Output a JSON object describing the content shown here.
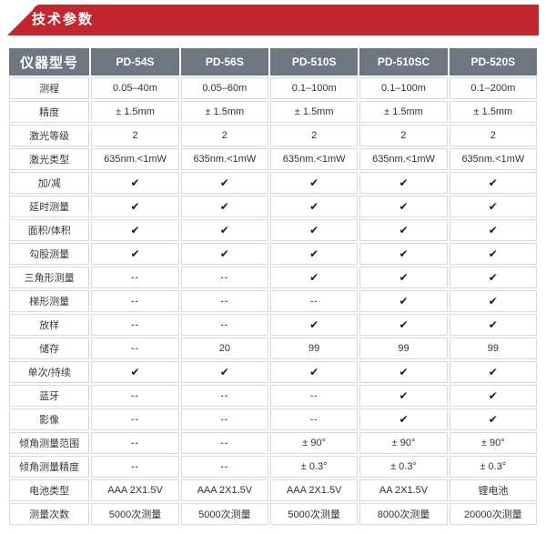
{
  "banner": {
    "title": "技术参数"
  },
  "colors": {
    "banner_red": "#c2272e",
    "header_gray": "#6e7781",
    "cell_border": "#d9d9d9",
    "check_black": "#1c1c1c",
    "dash_gray": "#5a5a5a"
  },
  "icons": {
    "check": "✔",
    "not_available": "--"
  },
  "table": {
    "header": [
      "仪器型号",
      "PD-54S",
      "PD-56S",
      "PD-510S",
      "PD-510SC",
      "PD-520S"
    ],
    "rows": [
      {
        "label": "测程",
        "cells": [
          "0.05–40m",
          "0.05–60m",
          "0.1–100m",
          "0.1–100m",
          "0.1–200m"
        ]
      },
      {
        "label": "精度",
        "cells": [
          "± 1.5mm",
          "± 1.5mm",
          "± 1.5mm",
          "± 1.5mm",
          "± 1.5mm"
        ]
      },
      {
        "label": "激光等级",
        "cells": [
          "2",
          "2",
          "2",
          "2",
          "2"
        ]
      },
      {
        "label": "激光类型",
        "cells": [
          "635nm.<1mW",
          "635nm.<1mW",
          "635nm.<1mW",
          "635nm.<1mW",
          "635nm.<1mW"
        ]
      },
      {
        "label": "加/减",
        "cells": [
          "✔",
          "✔",
          "✔",
          "✔",
          "✔"
        ]
      },
      {
        "label": "延时测量",
        "cells": [
          "✔",
          "✔",
          "✔",
          "✔",
          "✔"
        ]
      },
      {
        "label": "面积/体积",
        "cells": [
          "✔",
          "✔",
          "✔",
          "✔",
          "✔"
        ]
      },
      {
        "label": "勾股测量",
        "cells": [
          "✔",
          "✔",
          "✔",
          "✔",
          "✔"
        ]
      },
      {
        "label": "三角形测量",
        "cells": [
          "--",
          "--",
          "✔",
          "✔",
          "✔"
        ]
      },
      {
        "label": "梯形测量",
        "cells": [
          "--",
          "--",
          "--",
          "✔",
          "✔"
        ]
      },
      {
        "label": "放样",
        "cells": [
          "--",
          "--",
          "✔",
          "✔",
          "✔"
        ]
      },
      {
        "label": "储存",
        "cells": [
          "--",
          "20",
          "99",
          "99",
          "99"
        ]
      },
      {
        "label": "单次/持续",
        "cells": [
          "✔",
          "✔",
          "✔",
          "✔",
          "✔"
        ]
      },
      {
        "label": "蓝牙",
        "cells": [
          "--",
          "--",
          "--",
          "✔",
          "✔"
        ]
      },
      {
        "label": "影像",
        "cells": [
          "--",
          "--",
          "--",
          "✔",
          "✔"
        ]
      },
      {
        "label": "倾角测量范围",
        "cells": [
          "--",
          "--",
          "± 90°",
          "± 90°",
          "± 90°"
        ]
      },
      {
        "label": "倾角测量精度",
        "cells": [
          "--",
          "--",
          "± 0.3°",
          "± 0.3°",
          "± 0.3°"
        ]
      },
      {
        "label": "电池类型",
        "cells": [
          "AAA 2X1.5V",
          "AAA 2X1.5V",
          "AAA 2X1.5V",
          "AA 2X1.5V",
          "锂电池"
        ]
      },
      {
        "label": "测量次数",
        "cells": [
          "5000次测量",
          "5000次测量",
          "5000次测量",
          "8000次测量",
          "20000次测量"
        ]
      }
    ]
  }
}
